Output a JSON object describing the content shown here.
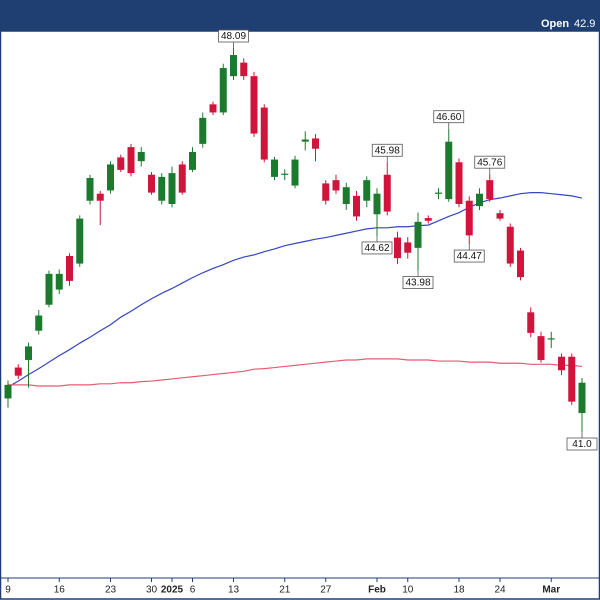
{
  "chart_data": {
    "type": "candlestick",
    "header": {
      "label": "Open",
      "value": "42.9"
    },
    "categories": [
      "9",
      null,
      null,
      null,
      null,
      "16",
      null,
      null,
      null,
      null,
      "23",
      null,
      null,
      null,
      "30",
      null,
      "2025",
      null,
      "6",
      null,
      null,
      null,
      "13",
      null,
      null,
      null,
      null,
      "21",
      null,
      null,
      null,
      "27",
      null,
      null,
      null,
      null,
      "Feb",
      null,
      null,
      "10",
      null,
      null,
      null,
      null,
      "18",
      null,
      null,
      null,
      "24",
      null,
      null,
      null,
      null,
      "Mar",
      null,
      null,
      null
    ],
    "open": [
      41.62,
      42.19,
      42.33,
      42.87,
      43.35,
      43.63,
      44.25,
      44.11,
      45.27,
      45.4,
      45.46,
      46.07,
      46.26,
      46.0,
      45.75,
      45.27,
      45.21,
      45.94,
      45.84,
      46.32,
      47.05,
      46.9,
      47.57,
      47.82,
      47.57,
      46.99,
      45.71,
      45.75,
      45.55,
      46.36,
      46.42,
      45.59,
      45.65,
      45.21,
      45.36,
      45.27,
      45.02,
      45.75,
      44.59,
      44.5,
      44.4,
      44.95,
      45.4,
      45.3,
      45.98,
      45.27,
      45.17,
      45.65,
      45.04,
      44.79,
      44.35,
      43.21,
      42.77,
      42.71,
      42.39,
      42.39,
      41.35
    ],
    "high": [
      41.95,
      42.25,
      42.65,
      43.25,
      43.98,
      44.0,
      44.3,
      45.0,
      45.75,
      45.45,
      46.0,
      46.12,
      46.32,
      46.26,
      45.8,
      45.78,
      45.9,
      46.0,
      46.26,
      46.9,
      47.1,
      47.8,
      48.09,
      47.9,
      47.65,
      47.05,
      46.08,
      45.85,
      46.1,
      46.55,
      46.5,
      45.65,
      45.75,
      45.6,
      45.45,
      45.72,
      45.5,
      45.98,
      44.7,
      44.6,
      45.05,
      45.0,
      45.5,
      46.6,
      46.05,
      45.35,
      45.5,
      45.76,
      45.1,
      44.85,
      44.4,
      43.3,
      42.85,
      42.85,
      42.45,
      42.45,
      42.0
    ],
    "low": [
      41.45,
      41.98,
      41.82,
      42.8,
      43.3,
      43.55,
      43.7,
      44.05,
      45.2,
      44.82,
      45.4,
      45.8,
      45.72,
      45.9,
      45.38,
      45.2,
      45.15,
      45.38,
      45.8,
      46.25,
      46.85,
      46.85,
      47.5,
      47.5,
      46.45,
      45.98,
      45.65,
      45.65,
      45.5,
      46.2,
      46.0,
      45.2,
      45.4,
      45.1,
      44.9,
      45.15,
      44.62,
      45.0,
      44.1,
      44.2,
      43.98,
      44.85,
      45.3,
      45.25,
      45.15,
      44.47,
      45.1,
      45.25,
      44.9,
      44.05,
      43.8,
      42.75,
      42.28,
      42.55,
      42.05,
      41.5,
      41.0
    ],
    "close": [
      41.87,
      42.04,
      42.58,
      43.15,
      43.92,
      43.92,
      43.79,
      44.94,
      45.69,
      45.27,
      45.94,
      45.84,
      45.78,
      46.17,
      45.42,
      45.71,
      45.78,
      45.42,
      46.17,
      46.8,
      46.9,
      47.72,
      47.96,
      47.57,
      46.51,
      46.03,
      46.03,
      45.77,
      46.03,
      46.4,
      46.23,
      45.27,
      45.46,
      45.52,
      44.98,
      45.65,
      45.4,
      45.07,
      44.21,
      44.31,
      44.88,
      44.9,
      45.42,
      46.36,
      45.21,
      44.63,
      45.4,
      45.3,
      44.94,
      44.11,
      43.86,
      42.83,
      42.33,
      42.73,
      42.14,
      41.56,
      41.91
    ],
    "up_color": "#1b7a2e",
    "down_color": "#d2143c",
    "moving_averages": [
      {
        "color": "#3446c4",
        "values": [
          41.83,
          41.94,
          42.06,
          42.17,
          42.29,
          42.41,
          42.52,
          42.64,
          42.75,
          42.87,
          42.98,
          43.12,
          43.23,
          43.35,
          43.46,
          43.56,
          43.65,
          43.75,
          43.85,
          43.94,
          44.02,
          44.09,
          44.17,
          44.23,
          44.27,
          44.33,
          44.38,
          44.44,
          44.48,
          44.52,
          44.56,
          44.59,
          44.63,
          44.67,
          44.71,
          44.75,
          44.77,
          44.77,
          44.79,
          44.79,
          44.81,
          44.82,
          44.9,
          44.98,
          45.05,
          45.15,
          45.23,
          45.29,
          45.32,
          45.36,
          45.4,
          45.42,
          45.42,
          45.4,
          45.38,
          45.36,
          45.32
        ]
      },
      {
        "color": "#e85a72",
        "values": [
          41.87,
          41.87,
          41.87,
          41.85,
          41.85,
          41.85,
          41.87,
          41.87,
          41.87,
          41.89,
          41.89,
          41.91,
          41.91,
          41.93,
          41.94,
          41.96,
          41.98,
          42.0,
          42.02,
          42.04,
          42.06,
          42.08,
          42.1,
          42.12,
          42.16,
          42.17,
          42.19,
          42.21,
          42.23,
          42.25,
          42.27,
          42.29,
          42.31,
          42.33,
          42.33,
          42.35,
          42.35,
          42.35,
          42.35,
          42.33,
          42.33,
          42.33,
          42.31,
          42.31,
          42.31,
          42.29,
          42.29,
          42.29,
          42.27,
          42.27,
          42.27,
          42.25,
          42.25,
          42.25,
          42.23,
          42.23,
          42.21
        ]
      }
    ],
    "marked_highs": [
      {
        "index": 22,
        "label": "48.09"
      },
      {
        "index": 37,
        "label": "45.98"
      },
      {
        "index": 43,
        "label": "46.60"
      },
      {
        "index": 47,
        "label": "45.76"
      }
    ],
    "marked_lows": [
      {
        "index": 36,
        "label": "44.62"
      },
      {
        "index": 40,
        "label": "43.98"
      },
      {
        "index": 45,
        "label": "44.47"
      },
      {
        "index": 56,
        "label": "41.0"
      }
    ]
  }
}
